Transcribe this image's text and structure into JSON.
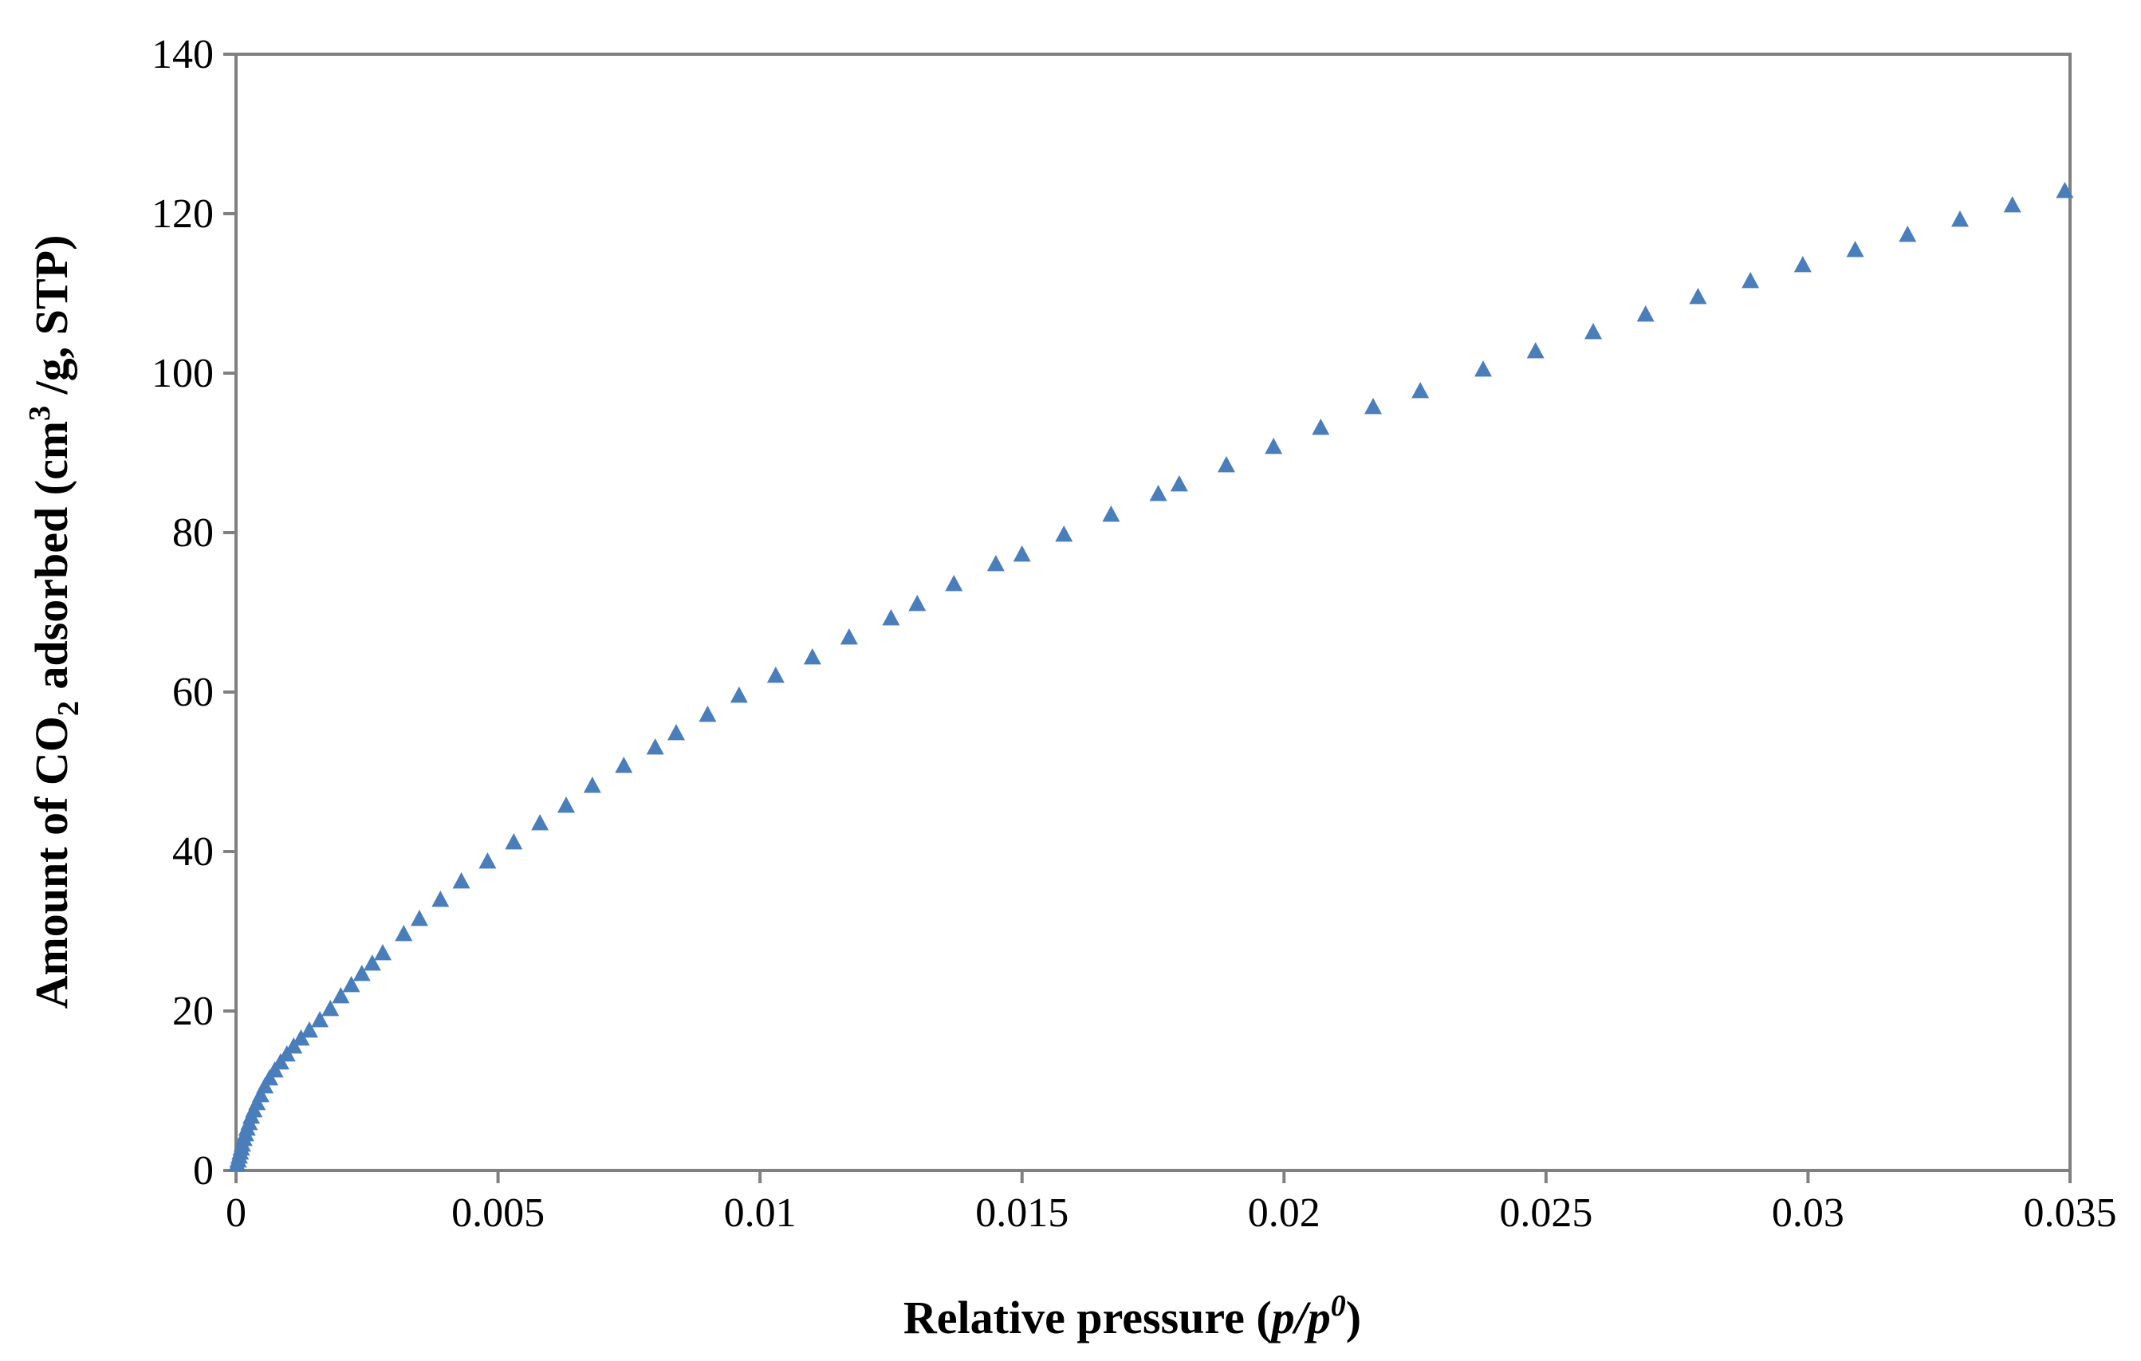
{
  "chart_data": {
    "type": "scatter",
    "xlabel": {
      "prefix": "Relative pressure (",
      "italic_main": "p/p",
      "italic_sup": "0",
      "suffix": ")"
    },
    "ylabel": {
      "part1": "Amount of CO",
      "sub": "2",
      "part2": " adsorbed  (cm",
      "sup": "3",
      "part3": " /g, STP)"
    },
    "xlim": [
      0,
      0.035
    ],
    "ylim": [
      0,
      140
    ],
    "x_ticks": [
      0,
      0.005,
      0.01,
      0.015,
      0.02,
      0.025,
      0.03,
      0.035
    ],
    "x_tick_labels": [
      "0",
      "0.005",
      "0.01",
      "0.015",
      "0.02",
      "0.025",
      "0.03",
      "0.035"
    ],
    "y_ticks": [
      0,
      20,
      40,
      60,
      80,
      100,
      120,
      140
    ],
    "y_tick_labels": [
      "0",
      "20",
      "40",
      "60",
      "80",
      "100",
      "120",
      "140"
    ],
    "grid": false,
    "legend": "none",
    "marker": "triangle",
    "marker_color": "#4a7ebb",
    "frame_color": "#808080",
    "series": [
      {
        "x": [
          2e-05,
          4e-05,
          6e-05,
          8e-05,
          0.0001,
          0.00012,
          0.00015,
          0.00018,
          0.00021,
          0.00025,
          0.00029,
          0.00034,
          0.0004,
          0.00047,
          0.00055,
          0.00064,
          0.00074,
          0.00085,
          0.00097,
          0.0011,
          0.00124,
          0.0014,
          0.0016,
          0.0018,
          0.002,
          0.0022,
          0.0024,
          0.0026,
          0.0028,
          0.0032,
          0.0035,
          0.0039,
          0.0043,
          0.0048,
          0.0053,
          0.0058,
          0.0063,
          0.0068,
          0.0074,
          0.008,
          0.0084,
          0.009,
          0.0096,
          0.0103,
          0.011,
          0.0117,
          0.0125,
          0.013,
          0.0137,
          0.0145,
          0.015,
          0.0158,
          0.0167,
          0.0176,
          0.018,
          0.0189,
          0.0198,
          0.0207,
          0.0217,
          0.0226,
          0.0238,
          0.0248,
          0.0259,
          0.0269,
          0.0279,
          0.0289,
          0.0299,
          0.0309,
          0.0319,
          0.0329,
          0.0339,
          0.0349
        ],
        "y": [
          0.8,
          1.3,
          1.8,
          2.3,
          2.8,
          3.3,
          4.0,
          4.6,
          5.3,
          6.0,
          6.8,
          7.6,
          8.5,
          9.5,
          10.6,
          11.6,
          12.6,
          13.6,
          14.6,
          15.6,
          16.6,
          17.6,
          18.9,
          20.3,
          21.9,
          23.3,
          24.7,
          26.0,
          27.3,
          29.7,
          31.6,
          34.0,
          36.3,
          38.8,
          41.2,
          43.6,
          45.8,
          48.3,
          50.8,
          53.1,
          54.9,
          57.2,
          59.6,
          62.1,
          64.4,
          66.9,
          69.3,
          71.1,
          73.6,
          76.1,
          77.3,
          79.8,
          82.3,
          84.9,
          86.1,
          88.5,
          90.8,
          93.2,
          95.8,
          97.8,
          100.5,
          102.8,
          105.2,
          107.4,
          109.6,
          111.6,
          113.6,
          115.5,
          117.4,
          119.3,
          121.1,
          122.9
        ]
      }
    ]
  }
}
